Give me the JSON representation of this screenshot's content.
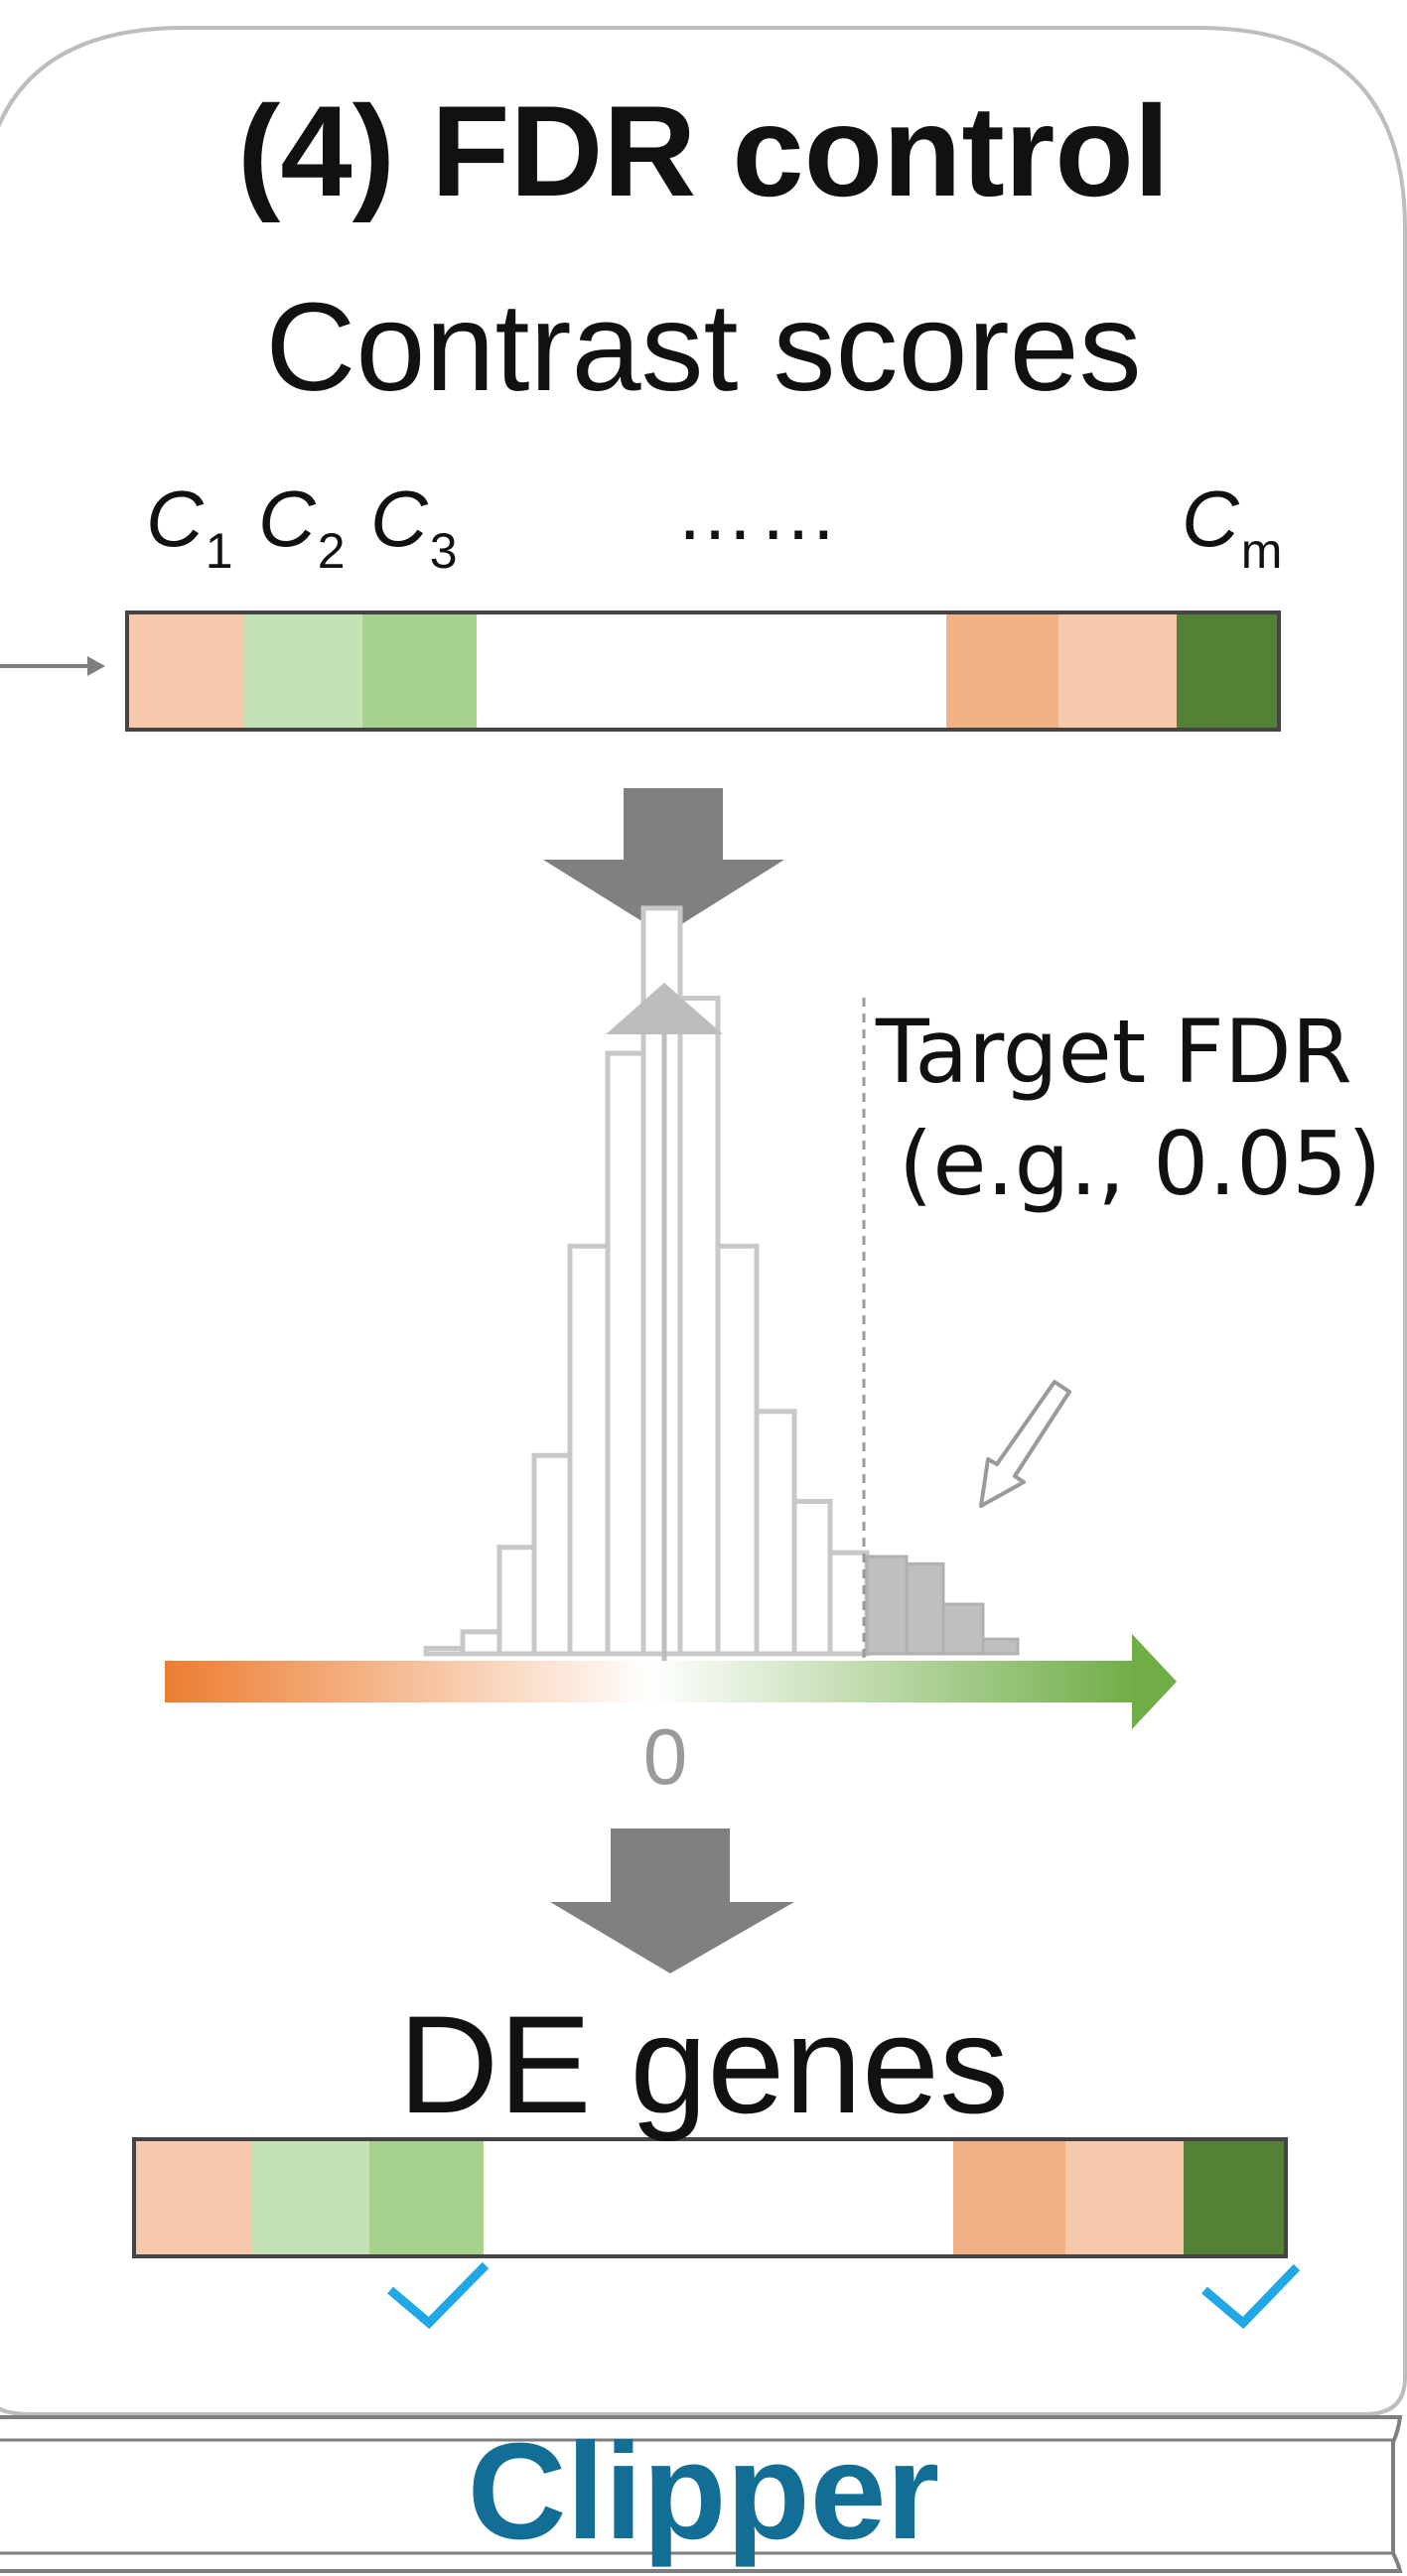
{
  "panel": {
    "title": "(4)  FDR control",
    "subtitle": "Contrast scores",
    "footer_label": "Clipper"
  },
  "score_strip": {
    "labels": [
      {
        "letter": "C",
        "sub": "1"
      },
      {
        "letter": "C",
        "sub": "2"
      },
      {
        "letter": "C",
        "sub": "3"
      },
      {
        "letter": "C",
        "sub": "m"
      }
    ],
    "ellipsis": "……",
    "cell_colors": [
      "#f7c9ad",
      "#c5e2b7",
      "#a6d28d",
      "#ffffff",
      "#f2b185",
      "#f7c9ad",
      "#538135"
    ]
  },
  "histogram": {
    "target_fdr_line1": "Target FDR",
    "target_fdr_line2": "(e.g., 0.05)",
    "zero_label": "0",
    "bar_counts": [
      0.3,
      1.2,
      5.8,
      10.8,
      22.2,
      32.7,
      40.6,
      35.7,
      22.2,
      13.2,
      8.3,
      5.5
    ],
    "tail_counts": [
      5.3,
      4.9,
      2.7,
      0.8
    ],
    "colors": {
      "bar_outline": "#c8c8c8",
      "tail_fill": "#bfbfbf",
      "axis_negative": "#ed7d31",
      "axis_positive": "#70ad47",
      "arrow": "#808080"
    }
  },
  "de_genes": {
    "title": "DE genes",
    "cell_colors": [
      "#f7c9ad",
      "#c5e2b7",
      "#a6d28d",
      "#ffffff",
      "#f2b185",
      "#f7c9ad",
      "#538135"
    ],
    "checkmark_color": "#1fa7e6"
  }
}
